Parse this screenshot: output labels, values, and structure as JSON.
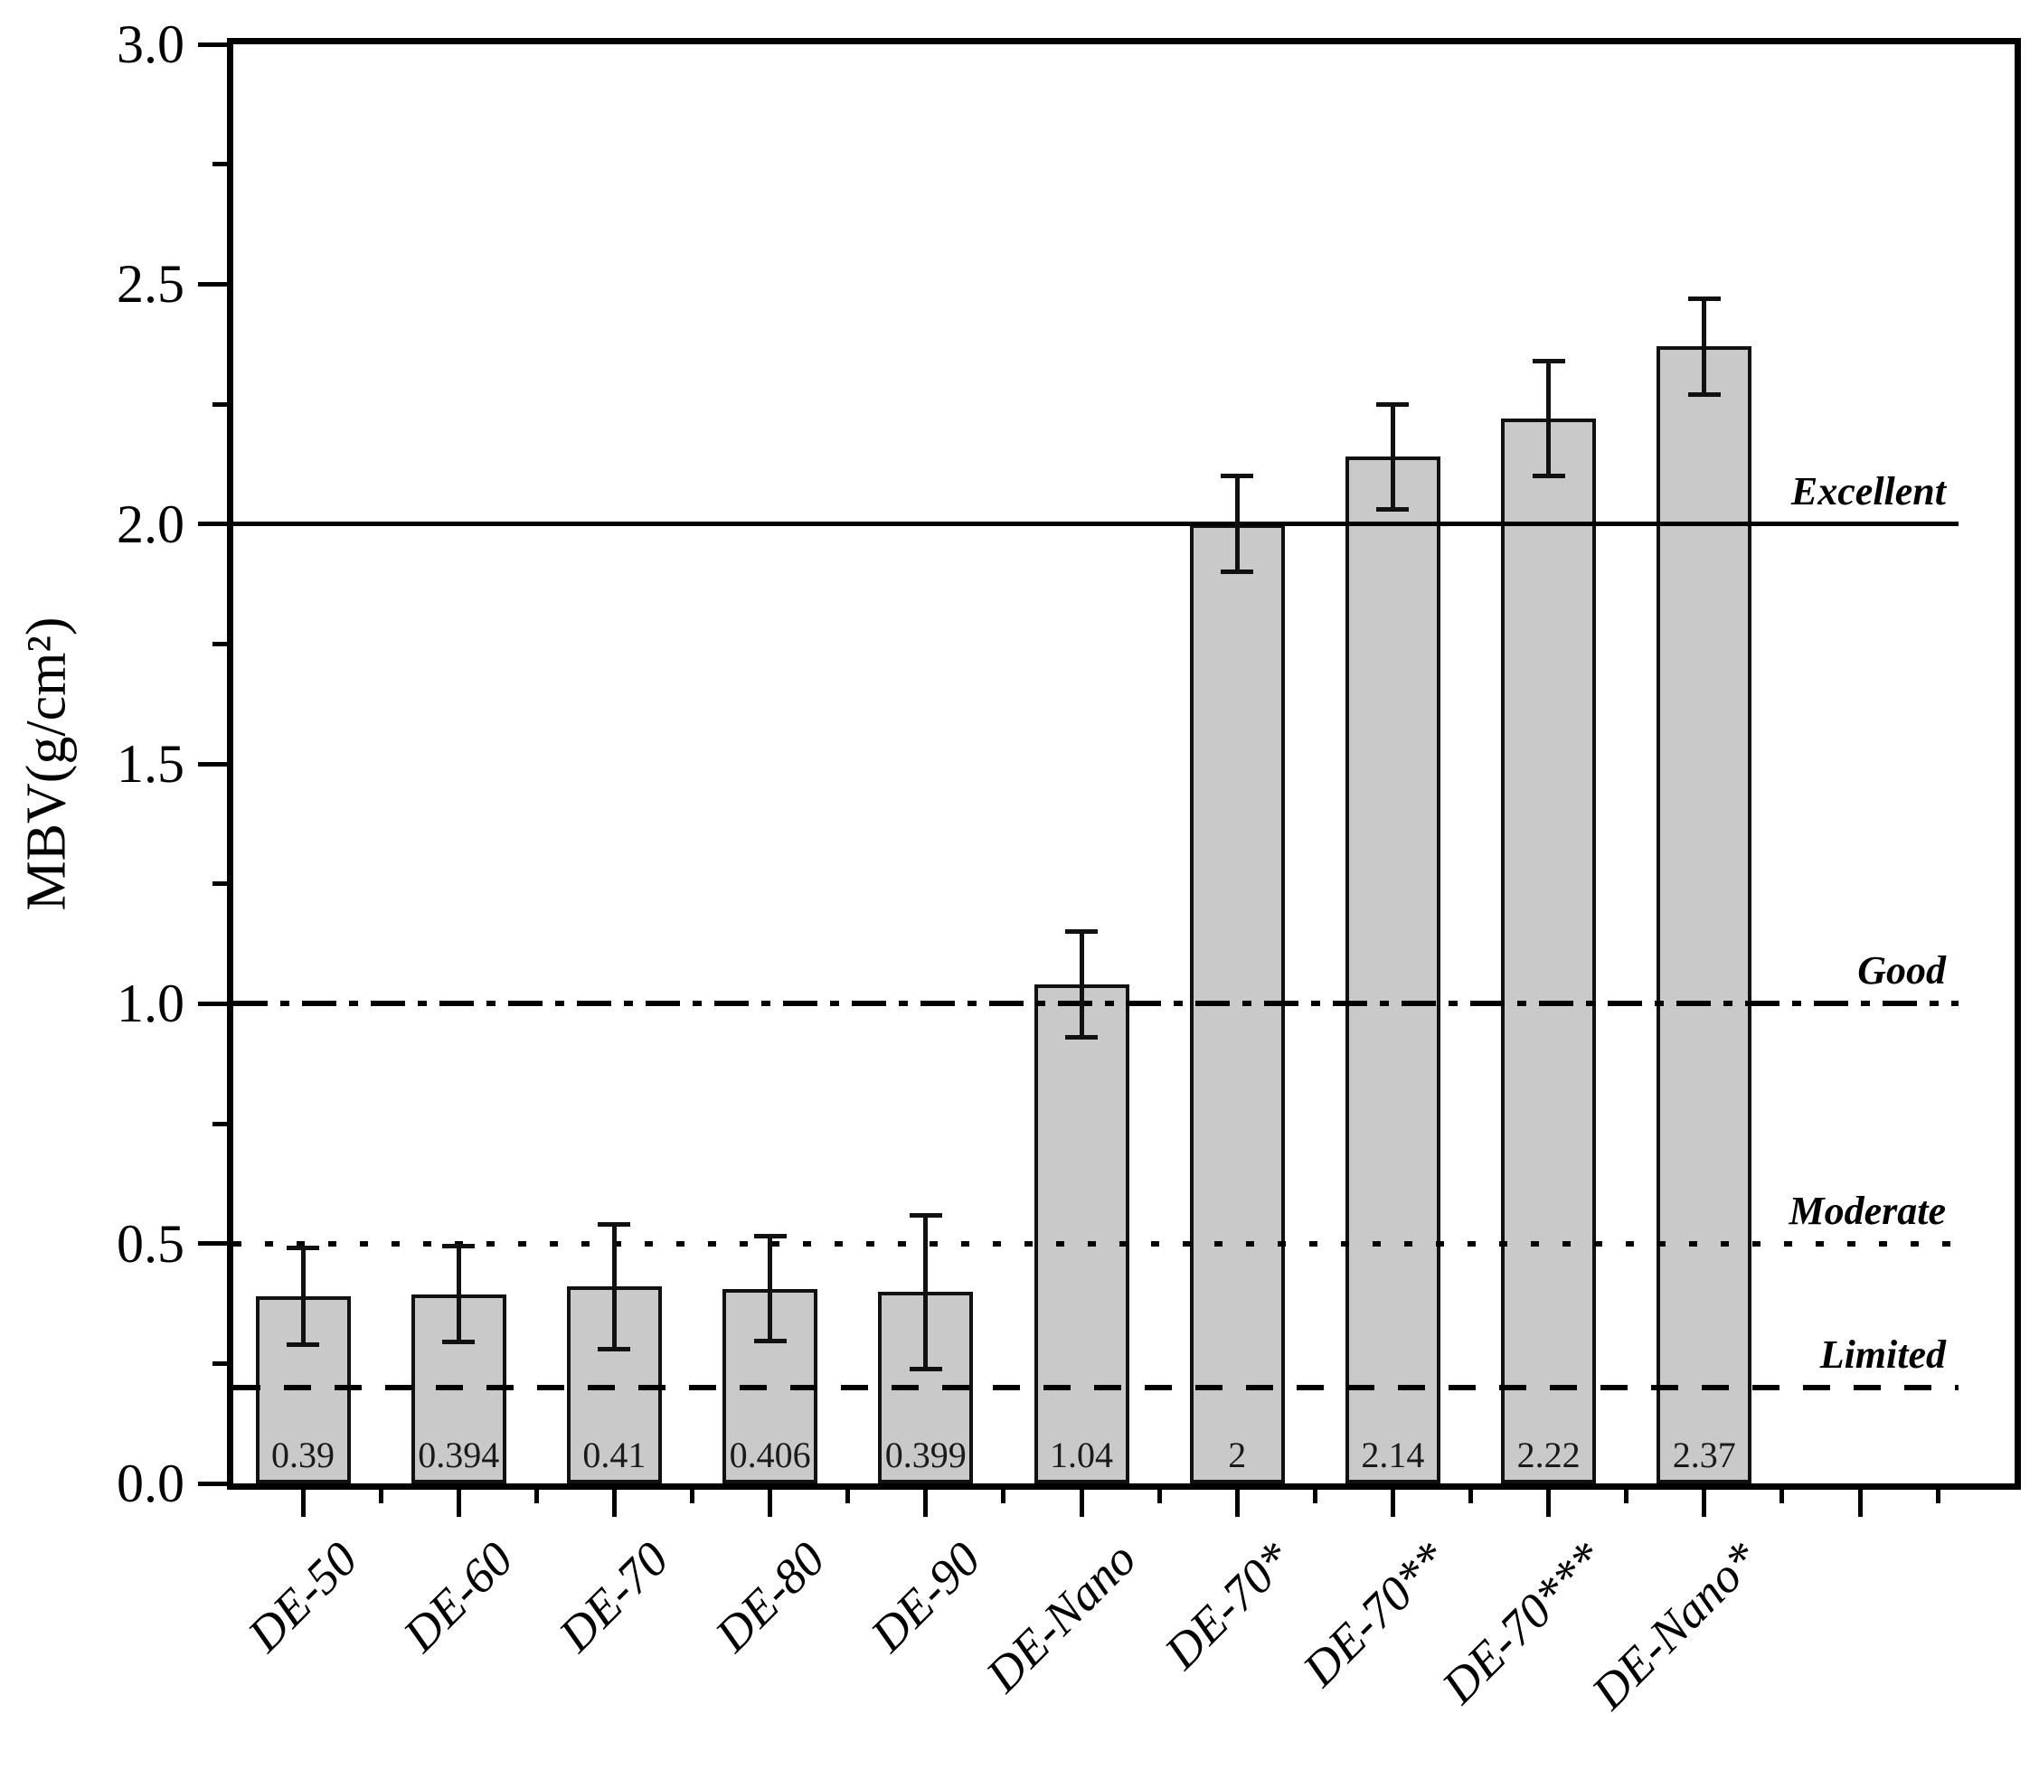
{
  "chart_data": {
    "type": "bar",
    "title": "",
    "xlabel": "",
    "ylabel": "MBV(g/cm²)",
    "ylim": [
      0.0,
      3.0
    ],
    "y_major_tick_values": [
      0.0,
      0.5,
      1.0,
      1.5,
      2.0,
      2.5,
      3.0
    ],
    "y_major_tick_labels": [
      "0.0",
      "0.5",
      "1.0",
      "1.5",
      "2.0",
      "2.5",
      "3.0"
    ],
    "y_minor_tick_values": [
      0.25,
      0.75,
      1.25,
      1.75,
      2.25,
      2.75
    ],
    "grid": false,
    "legend": null,
    "bar_color": "#c9c9c9",
    "bar_border_color": "#111111",
    "categories": [
      "DE-50",
      "DE-60",
      "DE-70",
      "DE-80",
      "DE-90",
      "DE-Nano",
      "DE-70*",
      "DE-70**",
      "DE-70***",
      "DE-Nano*"
    ],
    "values": [
      0.39,
      0.394,
      0.41,
      0.406,
      0.399,
      1.04,
      2,
      2.14,
      2.22,
      2.37
    ],
    "value_labels": [
      "0.39",
      "0.394",
      "0.41",
      "0.406",
      "0.399",
      "1.04",
      "2",
      "2.14",
      "2.22",
      "2.37"
    ],
    "error_bars": [
      0.1,
      0.1,
      0.13,
      0.11,
      0.16,
      0.11,
      0.1,
      0.11,
      0.12,
      0.1
    ],
    "reference_lines": [
      {
        "label": "Excellent",
        "value": 2.0,
        "style": "solid"
      },
      {
        "label": "Good",
        "value": 1.0,
        "style": "dashdot"
      },
      {
        "label": "Moderate",
        "value": 0.5,
        "style": "dotted"
      },
      {
        "label": "Limited",
        "value": 0.2,
        "style": "dashed"
      }
    ]
  }
}
